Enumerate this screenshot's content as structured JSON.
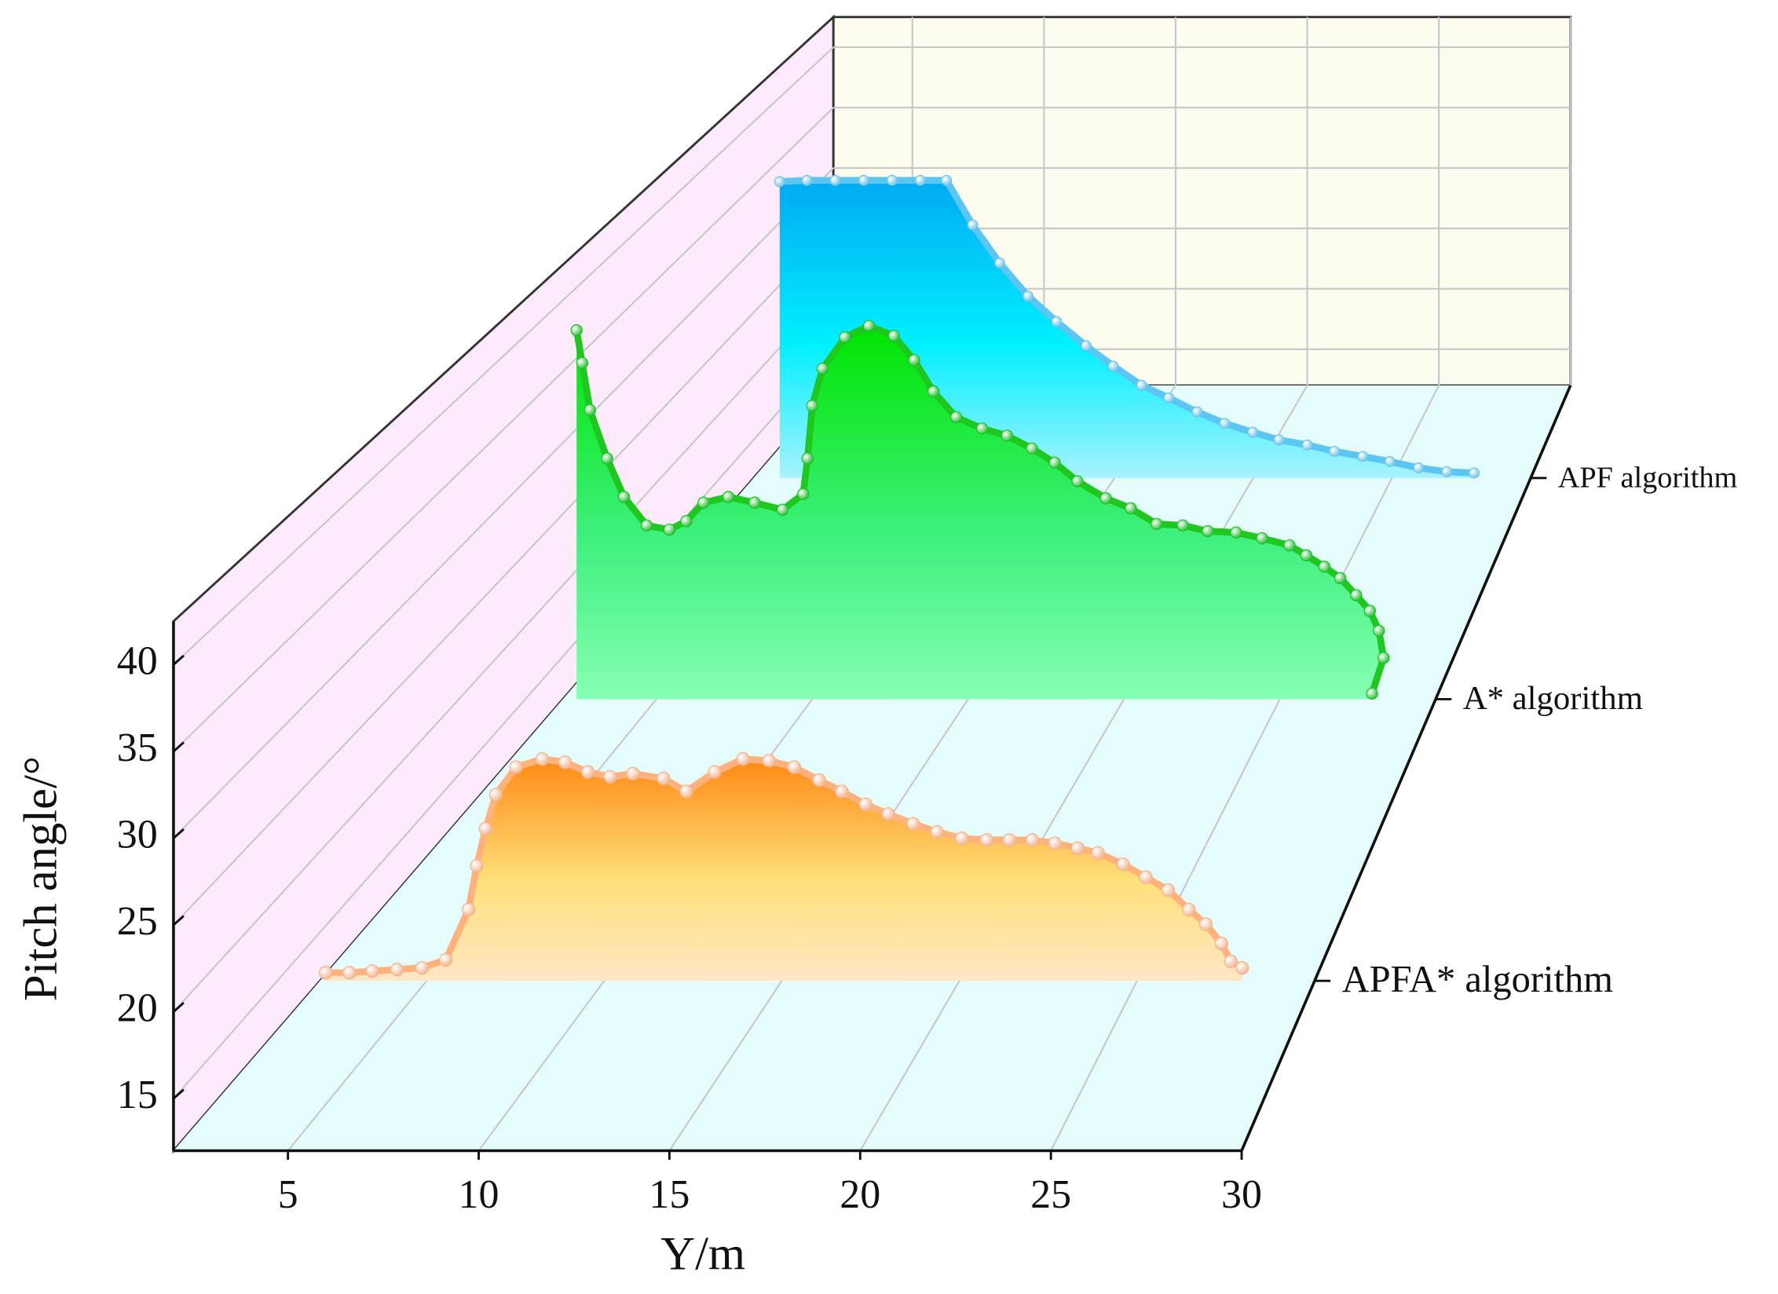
{
  "chart_data": {
    "type": "waterfall3d",
    "x_label": "Y/m",
    "y_label": "Pitch angle/°",
    "xlim": [
      2,
      30
    ],
    "xticks": [
      5,
      10,
      15,
      20,
      25,
      30
    ],
    "ylim": [
      12,
      42.5
    ],
    "yticks": [
      15,
      20,
      25,
      30,
      35,
      40
    ],
    "grid": true,
    "series": [
      {
        "name": "APFA* algorithm",
        "color": "#ffb27c",
        "fill_top": "#ff8a14",
        "fill_mid": "#ffe07a",
        "fill_bottom": "#ffe6c4",
        "marker": "#f2b48e",
        "x": [
          2.16,
          2.83,
          3.47,
          4.17,
          4.87,
          5.54,
          6.18,
          6.41,
          6.66,
          6.95,
          7.52,
          8.26,
          8.9,
          9.54,
          10.17,
          10.81,
          11.67,
          12.31,
          13.11,
          13.91,
          14.64,
          15.35,
          16.05,
          16.69,
          17.36,
          18.0,
          18.7,
          19.37,
          20.07,
          20.77,
          21.41,
          22.05,
          22.69,
          23.33,
          23.9,
          24.61,
          25.25,
          25.88,
          26.46,
          26.94,
          27.38,
          27.64,
          27.96
        ],
        "values": [
          12.5,
          12.5,
          12.6,
          12.7,
          12.8,
          13.3,
          16.4,
          19.1,
          21.4,
          23.5,
          25.2,
          25.7,
          25.5,
          24.9,
          24.6,
          24.8,
          24.5,
          23.7,
          24.9,
          25.7,
          25.6,
          25.2,
          24.4,
          23.7,
          22.9,
          22.3,
          21.7,
          21.2,
          20.8,
          20.7,
          20.7,
          20.7,
          20.5,
          20.2,
          19.9,
          19.2,
          18.4,
          17.6,
          16.4,
          15.5,
          14.3,
          13.2,
          12.8
        ]
      },
      {
        "name": "A* algorithm",
        "color": "#1ec81e",
        "fill_top": "#00e400",
        "fill_mid": "#3cf07a",
        "fill_bottom": "#86ffb4",
        "marker": "#1fbf2a",
        "x": [
          2.44,
          2.62,
          2.87,
          3.42,
          3.96,
          4.69,
          5.42,
          5.96,
          6.51,
          7.31,
          8.15,
          9.05,
          9.71,
          9.85,
          10.0,
          10.33,
          11.05,
          11.82,
          12.62,
          13.27,
          13.89,
          14.62,
          15.45,
          16.25,
          17.05,
          17.78,
          18.51,
          19.42,
          20.22,
          21.05,
          21.89,
          22.69,
          23.6,
          24.43,
          25.31,
          25.85,
          26.43,
          26.94,
          27.45,
          27.89,
          28.18,
          28.33,
          27.96
        ],
        "values": [
          37.9,
          35.6,
          32.3,
          28.9,
          26.2,
          24.2,
          23.9,
          24.5,
          25.8,
          26.2,
          25.8,
          25.3,
          26.4,
          28.9,
          32.6,
          35.2,
          37.4,
          38.2,
          37.5,
          35.8,
          33.6,
          31.8,
          31.0,
          30.5,
          29.6,
          28.6,
          27.3,
          26.1,
          25.4,
          24.3,
          24.2,
          23.8,
          23.7,
          23.3,
          22.8,
          22.1,
          21.3,
          20.5,
          19.3,
          18.2,
          16.8,
          14.9,
          12.4
        ]
      },
      {
        "name": "APF algorithm",
        "color": "#5cc6f2",
        "fill_top": "#00aaf2",
        "fill_mid": "#00f0ff",
        "fill_bottom": "#a8f2ff",
        "marker": "#6cc4ea",
        "x": [
          2.94,
          3.92,
          4.94,
          5.97,
          6.99,
          8.01,
          8.95,
          9.89,
          10.87,
          11.89,
          12.92,
          13.98,
          14.96,
          15.98,
          16.96,
          17.98,
          18.97,
          19.99,
          20.93,
          21.95,
          22.93,
          23.95,
          24.93,
          25.96,
          26.98,
          27.96
        ],
        "values": [
          35.3,
          35.4,
          35.4,
          35.4,
          35.4,
          35.4,
          35.4,
          31.9,
          28.9,
          26.3,
          24.3,
          22.4,
          20.8,
          19.3,
          18.3,
          17.2,
          16.3,
          15.6,
          15.0,
          14.6,
          14.1,
          13.7,
          13.3,
          12.8,
          12.5,
          12.4
        ]
      }
    ]
  }
}
